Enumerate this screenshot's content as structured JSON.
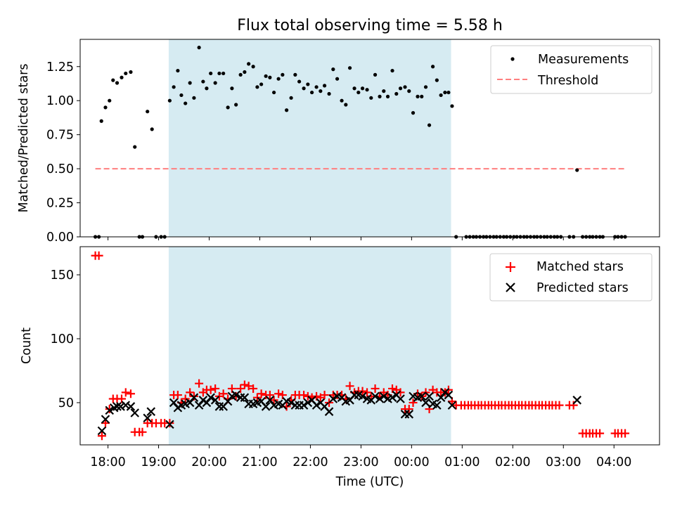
{
  "chart_data": [
    {
      "type": "scatter",
      "title": "Flux total observing time = 5.58 h",
      "ylabel": "Matched/Predicted stars",
      "xlabel": "",
      "xlim": [
        17.45,
        28.9
      ],
      "ylim": [
        0,
        1.45
      ],
      "ytick_values": [
        0,
        0.25,
        0.5,
        0.75,
        1.0,
        1.25
      ],
      "ytick_labels": [
        "0.00",
        "0.25",
        "0.50",
        "0.75",
        "1.00",
        "1.25"
      ],
      "shaded_region": [
        19.2,
        24.78
      ],
      "legend": [
        "Measurements",
        "Threshold"
      ],
      "legend_position": "top-right",
      "threshold": {
        "x": [
          17.75,
          28.25
        ],
        "y": 0.5
      },
      "measurements": [
        [
          17.75,
          0
        ],
        [
          17.82,
          0
        ],
        [
          17.87,
          0.85
        ],
        [
          17.95,
          0.95
        ],
        [
          18.03,
          1.0
        ],
        [
          18.1,
          1.15
        ],
        [
          18.18,
          1.13
        ],
        [
          18.27,
          1.17
        ],
        [
          18.35,
          1.2
        ],
        [
          18.45,
          1.21
        ],
        [
          18.53,
          0.66
        ],
        [
          18.62,
          0
        ],
        [
          18.68,
          0
        ],
        [
          18.78,
          0.92
        ],
        [
          18.87,
          0.79
        ],
        [
          18.95,
          0
        ],
        [
          19.05,
          0
        ],
        [
          19.12,
          0
        ],
        [
          19.22,
          1.0
        ],
        [
          19.3,
          1.1
        ],
        [
          19.38,
          1.22
        ],
        [
          19.45,
          1.04
        ],
        [
          19.53,
          0.98
        ],
        [
          19.62,
          1.13
        ],
        [
          19.7,
          1.02
        ],
        [
          19.8,
          1.39
        ],
        [
          19.88,
          1.14
        ],
        [
          19.95,
          1.09
        ],
        [
          20.03,
          1.2
        ],
        [
          20.12,
          1.13
        ],
        [
          20.2,
          1.2
        ],
        [
          20.28,
          1.2
        ],
        [
          20.37,
          0.95
        ],
        [
          20.45,
          1.09
        ],
        [
          20.53,
          0.97
        ],
        [
          20.62,
          1.19
        ],
        [
          20.7,
          1.21
        ],
        [
          20.78,
          1.27
        ],
        [
          20.87,
          1.25
        ],
        [
          20.95,
          1.1
        ],
        [
          21.03,
          1.12
        ],
        [
          21.12,
          1.18
        ],
        [
          21.2,
          1.17
        ],
        [
          21.28,
          1.06
        ],
        [
          21.37,
          1.16
        ],
        [
          21.45,
          1.19
        ],
        [
          21.53,
          0.93
        ],
        [
          21.62,
          1.02
        ],
        [
          21.7,
          1.19
        ],
        [
          21.78,
          1.14
        ],
        [
          21.87,
          1.09
        ],
        [
          21.95,
          1.12
        ],
        [
          22.03,
          1.06
        ],
        [
          22.12,
          1.1
        ],
        [
          22.2,
          1.07
        ],
        [
          22.28,
          1.11
        ],
        [
          22.37,
          1.05
        ],
        [
          22.45,
          1.23
        ],
        [
          22.53,
          1.16
        ],
        [
          22.62,
          1.0
        ],
        [
          22.7,
          0.97
        ],
        [
          22.78,
          1.24
        ],
        [
          22.87,
          1.09
        ],
        [
          22.95,
          1.06
        ],
        [
          23.03,
          1.09
        ],
        [
          23.12,
          1.08
        ],
        [
          23.2,
          1.02
        ],
        [
          23.28,
          1.19
        ],
        [
          23.37,
          1.03
        ],
        [
          23.45,
          1.07
        ],
        [
          23.53,
          1.03
        ],
        [
          23.62,
          1.22
        ],
        [
          23.7,
          1.05
        ],
        [
          23.78,
          1.09
        ],
        [
          23.87,
          1.1
        ],
        [
          23.95,
          1.07
        ],
        [
          24.03,
          0.91
        ],
        [
          24.12,
          1.03
        ],
        [
          24.2,
          1.03
        ],
        [
          24.28,
          1.1
        ],
        [
          24.35,
          0.82
        ],
        [
          24.42,
          1.25
        ],
        [
          24.5,
          1.15
        ],
        [
          24.58,
          1.04
        ],
        [
          24.66,
          1.06
        ],
        [
          24.73,
          1.06
        ],
        [
          24.8,
          0.96
        ],
        [
          24.88,
          0
        ],
        [
          25.08,
          0
        ],
        [
          25.15,
          0
        ],
        [
          25.22,
          0
        ],
        [
          25.28,
          0
        ],
        [
          25.35,
          0
        ],
        [
          25.42,
          0
        ],
        [
          25.48,
          0
        ],
        [
          25.55,
          0
        ],
        [
          25.62,
          0
        ],
        [
          25.68,
          0
        ],
        [
          25.75,
          0
        ],
        [
          25.82,
          0
        ],
        [
          25.88,
          0
        ],
        [
          25.95,
          0
        ],
        [
          26.02,
          0
        ],
        [
          26.08,
          0
        ],
        [
          26.15,
          0
        ],
        [
          26.22,
          0
        ],
        [
          26.28,
          0
        ],
        [
          26.35,
          0
        ],
        [
          26.42,
          0
        ],
        [
          26.48,
          0
        ],
        [
          26.55,
          0
        ],
        [
          26.62,
          0
        ],
        [
          26.68,
          0
        ],
        [
          26.75,
          0
        ],
        [
          26.82,
          0
        ],
        [
          26.88,
          0
        ],
        [
          26.95,
          0
        ],
        [
          27.12,
          0
        ],
        [
          27.2,
          0
        ],
        [
          27.27,
          0.49
        ],
        [
          27.38,
          0
        ],
        [
          27.45,
          0
        ],
        [
          27.52,
          0
        ],
        [
          27.58,
          0
        ],
        [
          27.65,
          0
        ],
        [
          27.72,
          0
        ],
        [
          27.78,
          0
        ],
        [
          28.02,
          0
        ],
        [
          28.08,
          0
        ],
        [
          28.15,
          0
        ],
        [
          28.22,
          0
        ]
      ]
    },
    {
      "type": "scatter",
      "title": "",
      "xlabel": "Time (UTC)",
      "ylabel": "Count",
      "xlim": [
        17.45,
        28.9
      ],
      "ylim": [
        17,
        172
      ],
      "xtick_values": [
        18,
        19,
        20,
        21,
        22,
        23,
        24,
        25,
        26,
        27,
        28
      ],
      "xtick_labels": [
        "18:00",
        "19:00",
        "20:00",
        "21:00",
        "22:00",
        "23:00",
        "00:00",
        "01:00",
        "02:00",
        "03:00",
        "04:00"
      ],
      "ytick_values": [
        50,
        100,
        150
      ],
      "ytick_labels": [
        "50",
        "100",
        "150"
      ],
      "shaded_region": [
        19.2,
        24.78
      ],
      "legend": [
        "Matched stars",
        "Predicted stars"
      ],
      "legend_position": "top-right",
      "matched": [
        [
          17.75,
          165
        ],
        [
          17.82,
          165
        ],
        [
          17.88,
          24
        ],
        [
          17.95,
          34
        ],
        [
          18.03,
          45
        ],
        [
          18.1,
          53
        ],
        [
          18.18,
          53
        ],
        [
          18.27,
          53
        ],
        [
          18.35,
          58
        ],
        [
          18.45,
          57
        ],
        [
          18.53,
          27
        ],
        [
          18.62,
          27
        ],
        [
          18.68,
          27
        ],
        [
          18.78,
          34
        ],
        [
          18.87,
          34
        ],
        [
          18.95,
          34
        ],
        [
          19.05,
          34
        ],
        [
          19.12,
          34
        ],
        [
          19.22,
          34
        ],
        [
          19.3,
          56
        ],
        [
          19.38,
          56
        ],
        [
          19.45,
          50
        ],
        [
          19.53,
          53
        ],
        [
          19.62,
          58
        ],
        [
          19.7,
          55
        ],
        [
          19.8,
          65
        ],
        [
          19.88,
          58
        ],
        [
          19.95,
          60
        ],
        [
          20.03,
          60
        ],
        [
          20.12,
          61
        ],
        [
          20.2,
          55
        ],
        [
          20.28,
          57
        ],
        [
          20.37,
          53
        ],
        [
          20.45,
          61
        ],
        [
          20.53,
          55
        ],
        [
          20.62,
          61
        ],
        [
          20.7,
          64
        ],
        [
          20.78,
          63
        ],
        [
          20.87,
          61
        ],
        [
          20.95,
          54
        ],
        [
          21.03,
          57
        ],
        [
          21.12,
          56
        ],
        [
          21.2,
          56
        ],
        [
          21.28,
          52
        ],
        [
          21.37,
          57
        ],
        [
          21.45,
          56
        ],
        [
          21.53,
          47
        ],
        [
          21.62,
          52
        ],
        [
          21.7,
          56
        ],
        [
          21.78,
          56
        ],
        [
          21.87,
          56
        ],
        [
          21.95,
          55
        ],
        [
          22.03,
          54
        ],
        [
          22.12,
          55
        ],
        [
          22.2,
          54
        ],
        [
          22.28,
          56
        ],
        [
          22.37,
          50
        ],
        [
          22.45,
          56
        ],
        [
          22.53,
          56
        ],
        [
          22.62,
          56
        ],
        [
          22.7,
          53
        ],
        [
          22.78,
          63
        ],
        [
          22.87,
          58
        ],
        [
          22.95,
          59
        ],
        [
          23.03,
          59
        ],
        [
          23.12,
          58
        ],
        [
          23.2,
          55
        ],
        [
          23.28,
          61
        ],
        [
          23.37,
          55
        ],
        [
          23.45,
          58
        ],
        [
          23.53,
          56
        ],
        [
          23.62,
          61
        ],
        [
          23.7,
          60
        ],
        [
          23.78,
          58
        ],
        [
          23.87,
          45
        ],
        [
          23.95,
          45
        ],
        [
          24.03,
          50
        ],
        [
          24.12,
          57
        ],
        [
          24.2,
          55
        ],
        [
          24.28,
          58
        ],
        [
          24.35,
          45
        ],
        [
          24.42,
          60
        ],
        [
          24.5,
          58
        ],
        [
          24.58,
          58
        ],
        [
          24.66,
          58
        ],
        [
          24.73,
          60
        ],
        [
          24.8,
          51
        ],
        [
          24.88,
          48
        ],
        [
          24.98,
          48
        ],
        [
          25.05,
          48
        ],
        [
          25.12,
          48
        ],
        [
          25.18,
          48
        ],
        [
          25.25,
          48
        ],
        [
          25.32,
          48
        ],
        [
          25.38,
          48
        ],
        [
          25.45,
          48
        ],
        [
          25.52,
          48
        ],
        [
          25.58,
          48
        ],
        [
          25.65,
          48
        ],
        [
          25.72,
          48
        ],
        [
          25.78,
          48
        ],
        [
          25.85,
          48
        ],
        [
          25.92,
          48
        ],
        [
          25.98,
          48
        ],
        [
          26.05,
          48
        ],
        [
          26.12,
          48
        ],
        [
          26.18,
          48
        ],
        [
          26.25,
          48
        ],
        [
          26.32,
          48
        ],
        [
          26.38,
          48
        ],
        [
          26.45,
          48
        ],
        [
          26.52,
          48
        ],
        [
          26.58,
          48
        ],
        [
          26.65,
          48
        ],
        [
          26.72,
          48
        ],
        [
          26.78,
          48
        ],
        [
          26.85,
          48
        ],
        [
          26.92,
          48
        ],
        [
          27.12,
          48
        ],
        [
          27.2,
          48
        ],
        [
          27.38,
          26
        ],
        [
          27.45,
          26
        ],
        [
          27.52,
          26
        ],
        [
          27.58,
          26
        ],
        [
          27.65,
          26
        ],
        [
          27.72,
          26
        ],
        [
          28.02,
          26
        ],
        [
          28.08,
          26
        ],
        [
          28.15,
          26
        ],
        [
          28.22,
          26
        ]
      ],
      "predicted": [
        [
          17.88,
          28
        ],
        [
          17.95,
          37
        ],
        [
          18.03,
          44
        ],
        [
          18.12,
          46
        ],
        [
          18.18,
          47
        ],
        [
          18.25,
          47
        ],
        [
          18.35,
          48
        ],
        [
          18.45,
          47
        ],
        [
          18.53,
          42
        ],
        [
          18.78,
          38
        ],
        [
          18.85,
          43
        ],
        [
          19.22,
          33
        ],
        [
          19.3,
          50
        ],
        [
          19.38,
          46
        ],
        [
          19.45,
          48
        ],
        [
          19.53,
          49
        ],
        [
          19.62,
          50
        ],
        [
          19.7,
          54
        ],
        [
          19.8,
          48
        ],
        [
          19.88,
          52
        ],
        [
          19.95,
          50
        ],
        [
          20.03,
          54
        ],
        [
          20.12,
          52
        ],
        [
          20.2,
          47
        ],
        [
          20.28,
          47
        ],
        [
          20.37,
          51
        ],
        [
          20.45,
          55
        ],
        [
          20.53,
          56
        ],
        [
          20.62,
          54
        ],
        [
          20.7,
          54
        ],
        [
          20.78,
          49
        ],
        [
          20.87,
          49
        ],
        [
          20.95,
          50
        ],
        [
          21.03,
          51
        ],
        [
          21.12,
          47
        ],
        [
          21.2,
          52
        ],
        [
          21.28,
          48
        ],
        [
          21.37,
          49
        ],
        [
          21.45,
          48
        ],
        [
          21.53,
          51
        ],
        [
          21.62,
          50
        ],
        [
          21.7,
          48
        ],
        [
          21.78,
          48
        ],
        [
          21.87,
          48
        ],
        [
          21.95,
          50
        ],
        [
          22.03,
          52
        ],
        [
          22.12,
          48
        ],
        [
          22.2,
          50
        ],
        [
          22.28,
          47
        ],
        [
          22.37,
          43
        ],
        [
          22.45,
          53
        ],
        [
          22.53,
          55
        ],
        [
          22.62,
          54
        ],
        [
          22.7,
          51
        ],
        [
          22.78,
          52
        ],
        [
          22.87,
          56
        ],
        [
          22.95,
          56
        ],
        [
          23.03,
          55
        ],
        [
          23.12,
          53
        ],
        [
          23.2,
          52
        ],
        [
          23.28,
          55
        ],
        [
          23.37,
          53
        ],
        [
          23.45,
          55
        ],
        [
          23.53,
          53
        ],
        [
          23.62,
          54
        ],
        [
          23.7,
          56
        ],
        [
          23.78,
          53
        ],
        [
          23.87,
          41
        ],
        [
          23.95,
          41
        ],
        [
          24.03,
          55
        ],
        [
          24.12,
          54
        ],
        [
          24.2,
          55
        ],
        [
          24.28,
          50
        ],
        [
          24.35,
          55
        ],
        [
          24.42,
          49
        ],
        [
          24.5,
          48
        ],
        [
          24.58,
          54
        ],
        [
          24.66,
          58
        ],
        [
          24.73,
          56
        ],
        [
          24.8,
          48
        ],
        [
          27.27,
          52
        ]
      ]
    }
  ],
  "colors": {
    "shade": "#add8e6",
    "measurement": "#000000",
    "threshold": "#ff7f7f",
    "matched": "#ff0000",
    "predicted": "#000000"
  }
}
